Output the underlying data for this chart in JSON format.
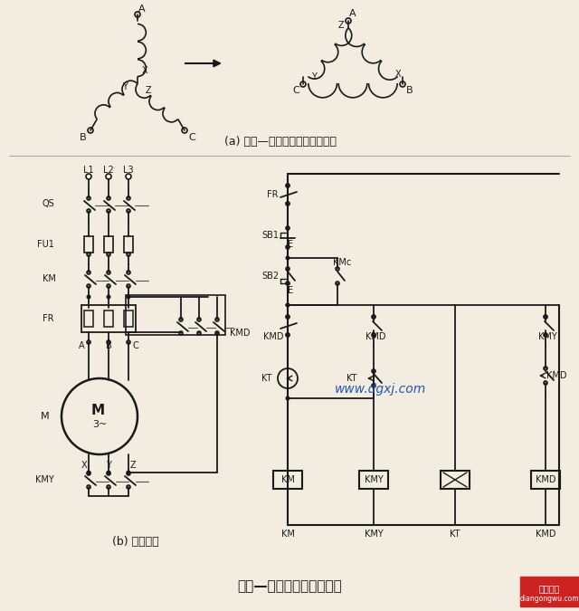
{
  "title": "星形—三角形启动控制线路",
  "subtitle_a": "(a) 星形—三角形转换绕组连接图",
  "subtitle_b": "(b) 控制线路",
  "bg_color": "#f2ede0",
  "line_color": "#1a1a1a",
  "watermark": "www.dgxj.com",
  "watermark_color": "#2255bb",
  "logo_text1": "电工之屋",
  "logo_text2": "diangongwu.com",
  "logo_bg": "#cc2222"
}
